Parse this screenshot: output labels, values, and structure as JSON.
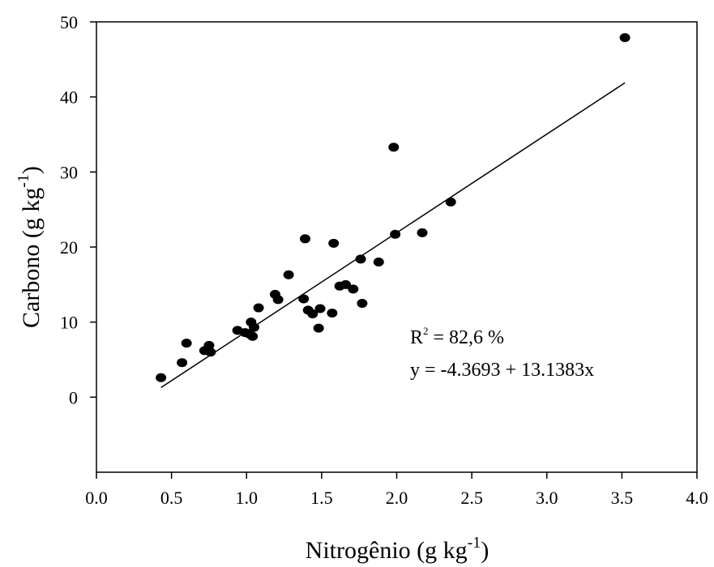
{
  "chart_data": {
    "type": "scatter",
    "title": "",
    "xlabel": "Nitrogênio (g kg",
    "xlabel_sup": "-1",
    "xlabel_end": ")",
    "ylabel": "Carbono (g kg",
    "ylabel_sup": "-1",
    "ylabel_end": ")",
    "xlim": [
      0.0,
      4.0
    ],
    "ylim": [
      -10,
      50
    ],
    "xticks": [
      "0.0",
      "0.5",
      "1.0",
      "1.5",
      "2.0",
      "2.5",
      "3.0",
      "3.5",
      "4.0"
    ],
    "yticks": [
      "0",
      "10",
      "20",
      "30",
      "40",
      "50"
    ],
    "grid": false,
    "legend": "none",
    "marker_color": "#000000",
    "series": [
      {
        "points": [
          {
            "x": 0.43,
            "y": 2.6
          },
          {
            "x": 0.57,
            "y": 4.6
          },
          {
            "x": 0.6,
            "y": 7.2
          },
          {
            "x": 0.72,
            "y": 6.2
          },
          {
            "x": 0.75,
            "y": 6.9
          },
          {
            "x": 0.76,
            "y": 6.0
          },
          {
            "x": 0.94,
            "y": 8.9
          },
          {
            "x": 0.99,
            "y": 8.6
          },
          {
            "x": 1.02,
            "y": 8.4
          },
          {
            "x": 1.03,
            "y": 10.0
          },
          {
            "x": 1.04,
            "y": 8.1
          },
          {
            "x": 1.05,
            "y": 9.3
          },
          {
            "x": 1.08,
            "y": 11.9
          },
          {
            "x": 1.19,
            "y": 13.7
          },
          {
            "x": 1.21,
            "y": 13.0
          },
          {
            "x": 1.28,
            "y": 16.3
          },
          {
            "x": 1.38,
            "y": 13.1
          },
          {
            "x": 1.39,
            "y": 21.1
          },
          {
            "x": 1.41,
            "y": 11.6
          },
          {
            "x": 1.44,
            "y": 11.1
          },
          {
            "x": 1.48,
            "y": 9.2
          },
          {
            "x": 1.49,
            "y": 11.8
          },
          {
            "x": 1.57,
            "y": 11.2
          },
          {
            "x": 1.58,
            "y": 20.5
          },
          {
            "x": 1.62,
            "y": 14.8
          },
          {
            "x": 1.66,
            "y": 15.0
          },
          {
            "x": 1.71,
            "y": 14.4
          },
          {
            "x": 1.76,
            "y": 18.4
          },
          {
            "x": 1.77,
            "y": 12.5
          },
          {
            "x": 1.88,
            "y": 18.0
          },
          {
            "x": 1.98,
            "y": 33.3
          },
          {
            "x": 1.99,
            "y": 21.7
          },
          {
            "x": 2.17,
            "y": 21.9
          },
          {
            "x": 2.36,
            "y": 26.0
          },
          {
            "x": 3.52,
            "y": 47.9
          }
        ]
      }
    ],
    "regression": {
      "intercept": -4.3693,
      "slope": 13.1383,
      "x_range": [
        0.43,
        3.52
      ]
    },
    "annotations": {
      "r2_prefix": "R",
      "r2_sup": "2",
      "r2_value": " = 82,6 %",
      "equation": "y = -4.3693 + 13.1383x"
    }
  }
}
